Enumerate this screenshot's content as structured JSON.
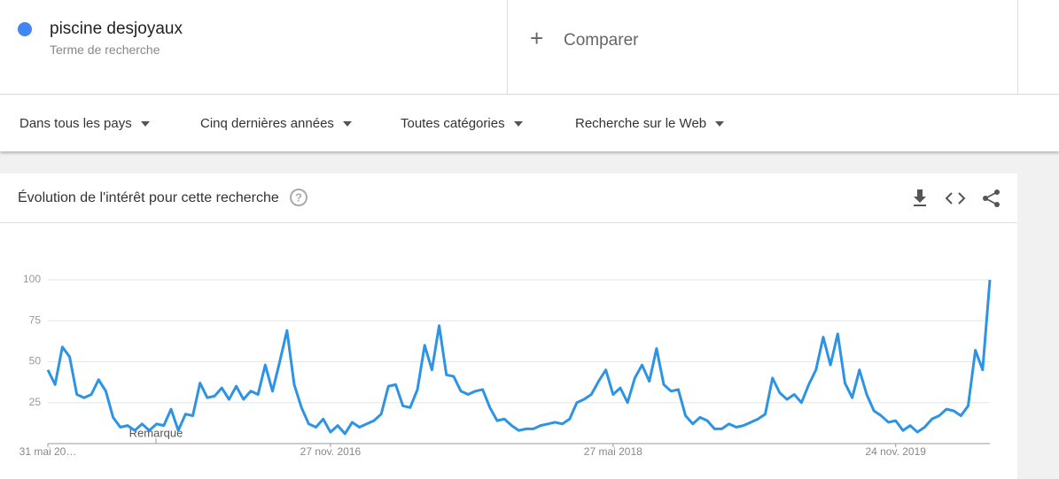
{
  "search": {
    "term": "piscine desjoyaux",
    "term_type": "Terme de recherche",
    "compare": "Comparer"
  },
  "filters": [
    "Dans tous les pays",
    "Cinq dernières années",
    "Toutes catégories",
    "Recherche sur le Web"
  ],
  "card": {
    "title": "Évolution de l'intérêt pour cette recherche"
  },
  "chart_data": {
    "type": "line",
    "annotation": "Remarque",
    "categories": [
      "31 mai 20…",
      null,
      null,
      null,
      null,
      null,
      null,
      null,
      null,
      null,
      null,
      null,
      null,
      null,
      null,
      null,
      null,
      null,
      null,
      null,
      null,
      null,
      null,
      null,
      null,
      null,
      null,
      null,
      null,
      null,
      null,
      null,
      null,
      null,
      null,
      null,
      null,
      null,
      null,
      "27 nov. 2016",
      null,
      null,
      null,
      null,
      null,
      null,
      null,
      null,
      null,
      null,
      null,
      null,
      null,
      null,
      null,
      null,
      null,
      null,
      null,
      null,
      null,
      null,
      null,
      null,
      null,
      null,
      null,
      null,
      null,
      null,
      null,
      null,
      null,
      null,
      null,
      null,
      null,
      null,
      "27 mai 2018",
      null,
      null,
      null,
      null,
      null,
      null,
      null,
      null,
      null,
      null,
      null,
      null,
      null,
      null,
      null,
      null,
      null,
      null,
      null,
      null,
      null,
      null,
      null,
      null,
      null,
      null,
      null,
      null,
      null,
      null,
      null,
      null,
      null,
      null,
      null,
      null,
      null,
      null,
      "24 nov. 2019",
      null,
      null,
      null,
      null,
      null,
      null,
      null,
      null,
      null,
      null,
      null,
      null,
      null
    ],
    "series": [
      {
        "color": "#2d94e5",
        "values": [
          45,
          36,
          59,
          53,
          30,
          28,
          30,
          39,
          32,
          16,
          10,
          11,
          8,
          12,
          8,
          12,
          11,
          21,
          8,
          18,
          17,
          37,
          28,
          29,
          34,
          27,
          35,
          27,
          32,
          30,
          48,
          32,
          50,
          69,
          36,
          22,
          12,
          10,
          15,
          7,
          11,
          6,
          13,
          10,
          12,
          14,
          18,
          35,
          36,
          23,
          22,
          33,
          60,
          45,
          72,
          42,
          41,
          32,
          30,
          32,
          33,
          22,
          14,
          15,
          11,
          8,
          9,
          9,
          11,
          12,
          13,
          12,
          15,
          25,
          27,
          30,
          38,
          45,
          30,
          34,
          25,
          40,
          48,
          38,
          58,
          36,
          32,
          33,
          17,
          12,
          16,
          14,
          9,
          9,
          12,
          10,
          11,
          13,
          15,
          18,
          40,
          31,
          27,
          30,
          25,
          36,
          45,
          65,
          48,
          67,
          37,
          28,
          45,
          30,
          20,
          17,
          13,
          14,
          8,
          11,
          7,
          10,
          15,
          17,
          21,
          20,
          17,
          23,
          57,
          45,
          100
        ]
      }
    ],
    "ylim": [
      0,
      100
    ],
    "yticks": [
      25,
      50,
      75,
      100
    ],
    "grid": true
  }
}
